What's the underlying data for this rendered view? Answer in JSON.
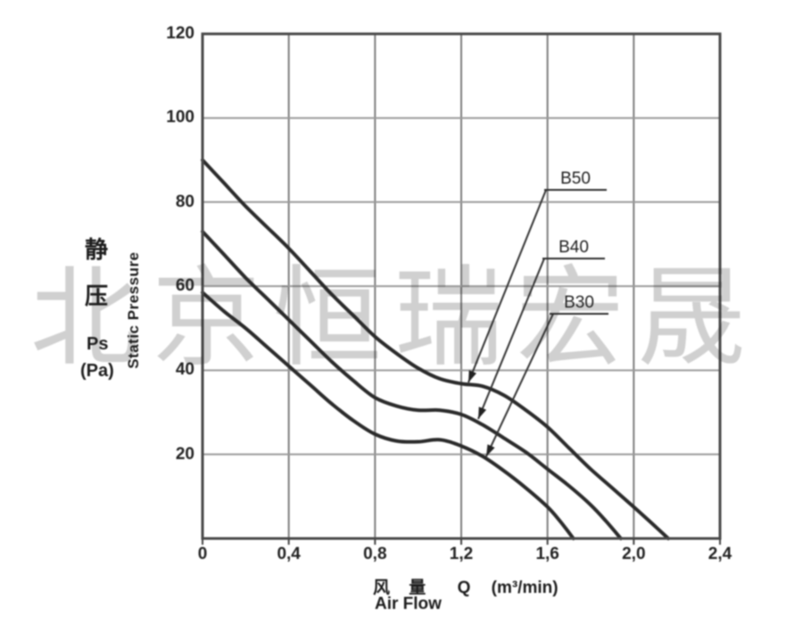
{
  "watermark": {
    "text": "北京恒瑞宏晟"
  },
  "y_axis": {
    "label_cn_1": "静",
    "label_cn_2": "压",
    "symbol": "Ps",
    "unit": "(Pa)",
    "label_en": "Static Pressure"
  },
  "x_axis": {
    "label_cn": "风 量",
    "symbol": "Q",
    "unit": "(m³/min)",
    "label_en": "Air Flow"
  },
  "chart_data": {
    "type": "line",
    "title": "",
    "xlabel": "风量 Q (m³/min) — Air Flow",
    "ylabel": "静压 Ps (Pa) — Static Pressure",
    "xlim": [
      0,
      2.4
    ],
    "ylim": [
      0,
      120
    ],
    "grid": true,
    "legend_position": "inline-labels-with-arrows",
    "x_ticks": [
      "0",
      "0,4",
      "0,8",
      "1,2",
      "1,6",
      "2,0",
      "2,4"
    ],
    "x_tick_values": [
      0,
      0.4,
      0.8,
      1.2,
      1.6,
      2.0,
      2.4
    ],
    "y_ticks": [
      "120",
      "100",
      "80",
      "60",
      "40",
      "20"
    ],
    "y_tick_values": [
      120,
      100,
      80,
      60,
      40,
      20
    ],
    "series": [
      {
        "name": "B50",
        "points": [
          [
            0,
            90
          ],
          [
            0.1,
            84.5
          ],
          [
            0.2,
            79
          ],
          [
            0.3,
            74
          ],
          [
            0.4,
            69
          ],
          [
            0.5,
            63.5
          ],
          [
            0.6,
            58
          ],
          [
            0.7,
            53
          ],
          [
            0.8,
            48
          ],
          [
            0.9,
            44
          ],
          [
            1.0,
            40.5
          ],
          [
            1.1,
            38
          ],
          [
            1.2,
            36.8
          ],
          [
            1.3,
            36.2
          ],
          [
            1.4,
            34
          ],
          [
            1.5,
            30.5
          ],
          [
            1.6,
            26.5
          ],
          [
            1.7,
            21.5
          ],
          [
            1.8,
            16.5
          ],
          [
            1.9,
            12
          ],
          [
            2.0,
            7.5
          ],
          [
            2.08,
            3.8
          ],
          [
            2.16,
            0
          ]
        ]
      },
      {
        "name": "B40",
        "points": [
          [
            0,
            73
          ],
          [
            0.1,
            67.5
          ],
          [
            0.2,
            62
          ],
          [
            0.3,
            57
          ],
          [
            0.4,
            52
          ],
          [
            0.5,
            47
          ],
          [
            0.6,
            42
          ],
          [
            0.7,
            37.5
          ],
          [
            0.8,
            33.5
          ],
          [
            0.9,
            31.5
          ],
          [
            1.0,
            30.5
          ],
          [
            1.1,
            30.5
          ],
          [
            1.2,
            29.5
          ],
          [
            1.3,
            27
          ],
          [
            1.4,
            23.8
          ],
          [
            1.5,
            20.5
          ],
          [
            1.6,
            16.5
          ],
          [
            1.7,
            12.5
          ],
          [
            1.8,
            8
          ],
          [
            1.87,
            4.2
          ],
          [
            1.94,
            0
          ]
        ]
      },
      {
        "name": "B30",
        "points": [
          [
            0,
            58.5
          ],
          [
            0.1,
            54
          ],
          [
            0.2,
            50
          ],
          [
            0.3,
            45.5
          ],
          [
            0.4,
            41
          ],
          [
            0.5,
            36.5
          ],
          [
            0.6,
            32
          ],
          [
            0.7,
            28
          ],
          [
            0.8,
            24.8
          ],
          [
            0.9,
            23.2
          ],
          [
            1.0,
            23
          ],
          [
            1.1,
            23.5
          ],
          [
            1.2,
            22
          ],
          [
            1.3,
            19.5
          ],
          [
            1.4,
            16
          ],
          [
            1.5,
            12
          ],
          [
            1.6,
            7.5
          ],
          [
            1.66,
            4
          ],
          [
            1.72,
            0
          ]
        ]
      }
    ]
  }
}
